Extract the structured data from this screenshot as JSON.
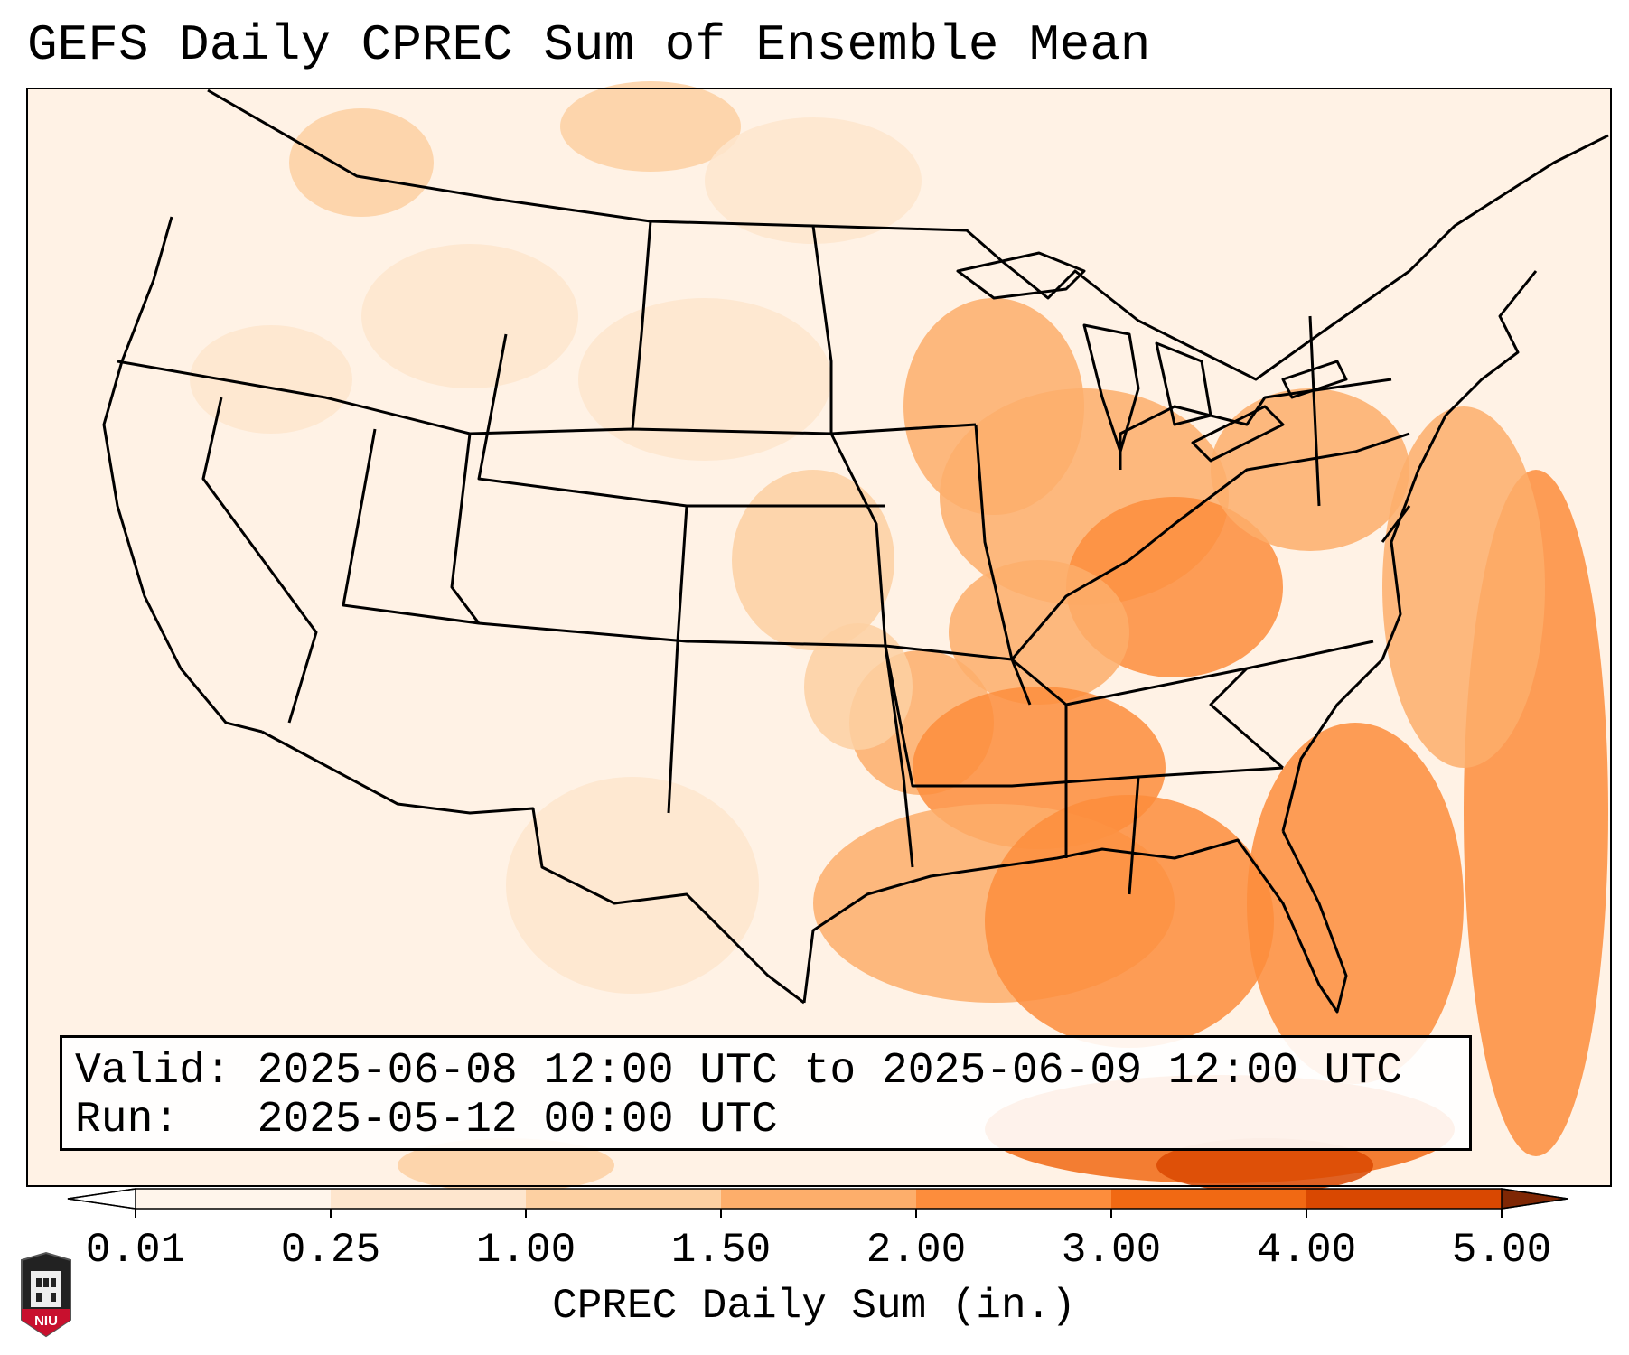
{
  "title": "GEFS Daily CPREC Sum of Ensemble Mean",
  "info": {
    "valid_label": "Valid:",
    "valid_value": "2025-06-08 12:00 UTC to 2025-06-09 12:00 UTC",
    "run_label": "Run:",
    "run_value": "2025-05-12 00:00 UTC"
  },
  "colorbar": {
    "label": "CPREC Daily Sum (in.)",
    "ticks": [
      "0.01",
      "0.25",
      "1.00",
      "1.50",
      "2.00",
      "3.00",
      "4.00",
      "5.00"
    ],
    "colors": [
      "#fff5eb",
      "#fee6ce",
      "#fdd0a2",
      "#fdae6b",
      "#fd8d3c",
      "#f16913",
      "#d94801",
      "#8c2d04"
    ],
    "under_color": "#ffffff",
    "over_color": "#7f2704"
  },
  "logo": {
    "text": "NIU",
    "bg_color": "#c8102e"
  }
}
